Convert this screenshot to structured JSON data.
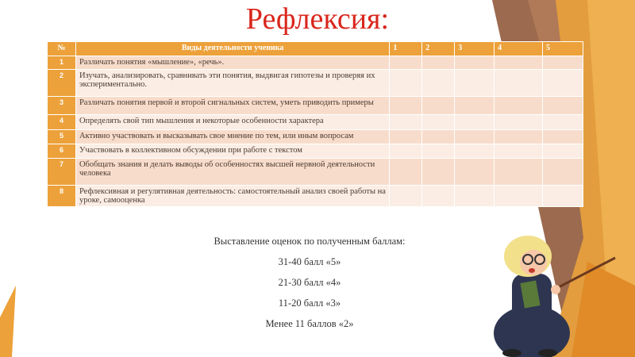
{
  "title": "Рефлексия:",
  "table": {
    "headers": [
      "№",
      "Виды деятельности ученика",
      "1",
      "2",
      "3",
      "4",
      "5"
    ],
    "rows": [
      {
        "num": "1",
        "text": "Различать понятия  «мышление», «речь»."
      },
      {
        "num": "2",
        "text": "Изучать, анализировать, сравнивать эти понятия, выдвигая гипотезы и проверяя их экспериментально."
      },
      {
        "num": "3",
        "text": "Различать понятия  первой и второй сигнальных систем, уметь приводить примеры"
      },
      {
        "num": "4",
        "text": "Определять свой тип мышления и некоторые особенности характера"
      },
      {
        "num": "5",
        "text": "Активно участвовать и высказывать свое мнение по тем, или иным вопросам"
      },
      {
        "num": "6",
        "text": "Участвовать в коллективном обсуждении  при работе с текстом"
      },
      {
        "num": "7",
        "text": "Обобщать знания и делать выводы об особенностях высшей нервной деятельности человека"
      },
      {
        "num": "8",
        "text": "Рефлексивная и регулятивная  деятельность: самостоятельный анализ своей работы на уроке, самооценка"
      }
    ]
  },
  "grading": {
    "intro": "Выставление оценок по полученным баллам:",
    "lines": [
      "31-40 балл  «5»",
      "21-30 балл   «4»",
      "11-20 балл  «3»",
      "Менее 11 баллов  «2»"
    ]
  },
  "colors": {
    "accent": "#eda13a",
    "title": "#d9261c"
  },
  "illustration": "cartoon-teacher-with-pointer"
}
